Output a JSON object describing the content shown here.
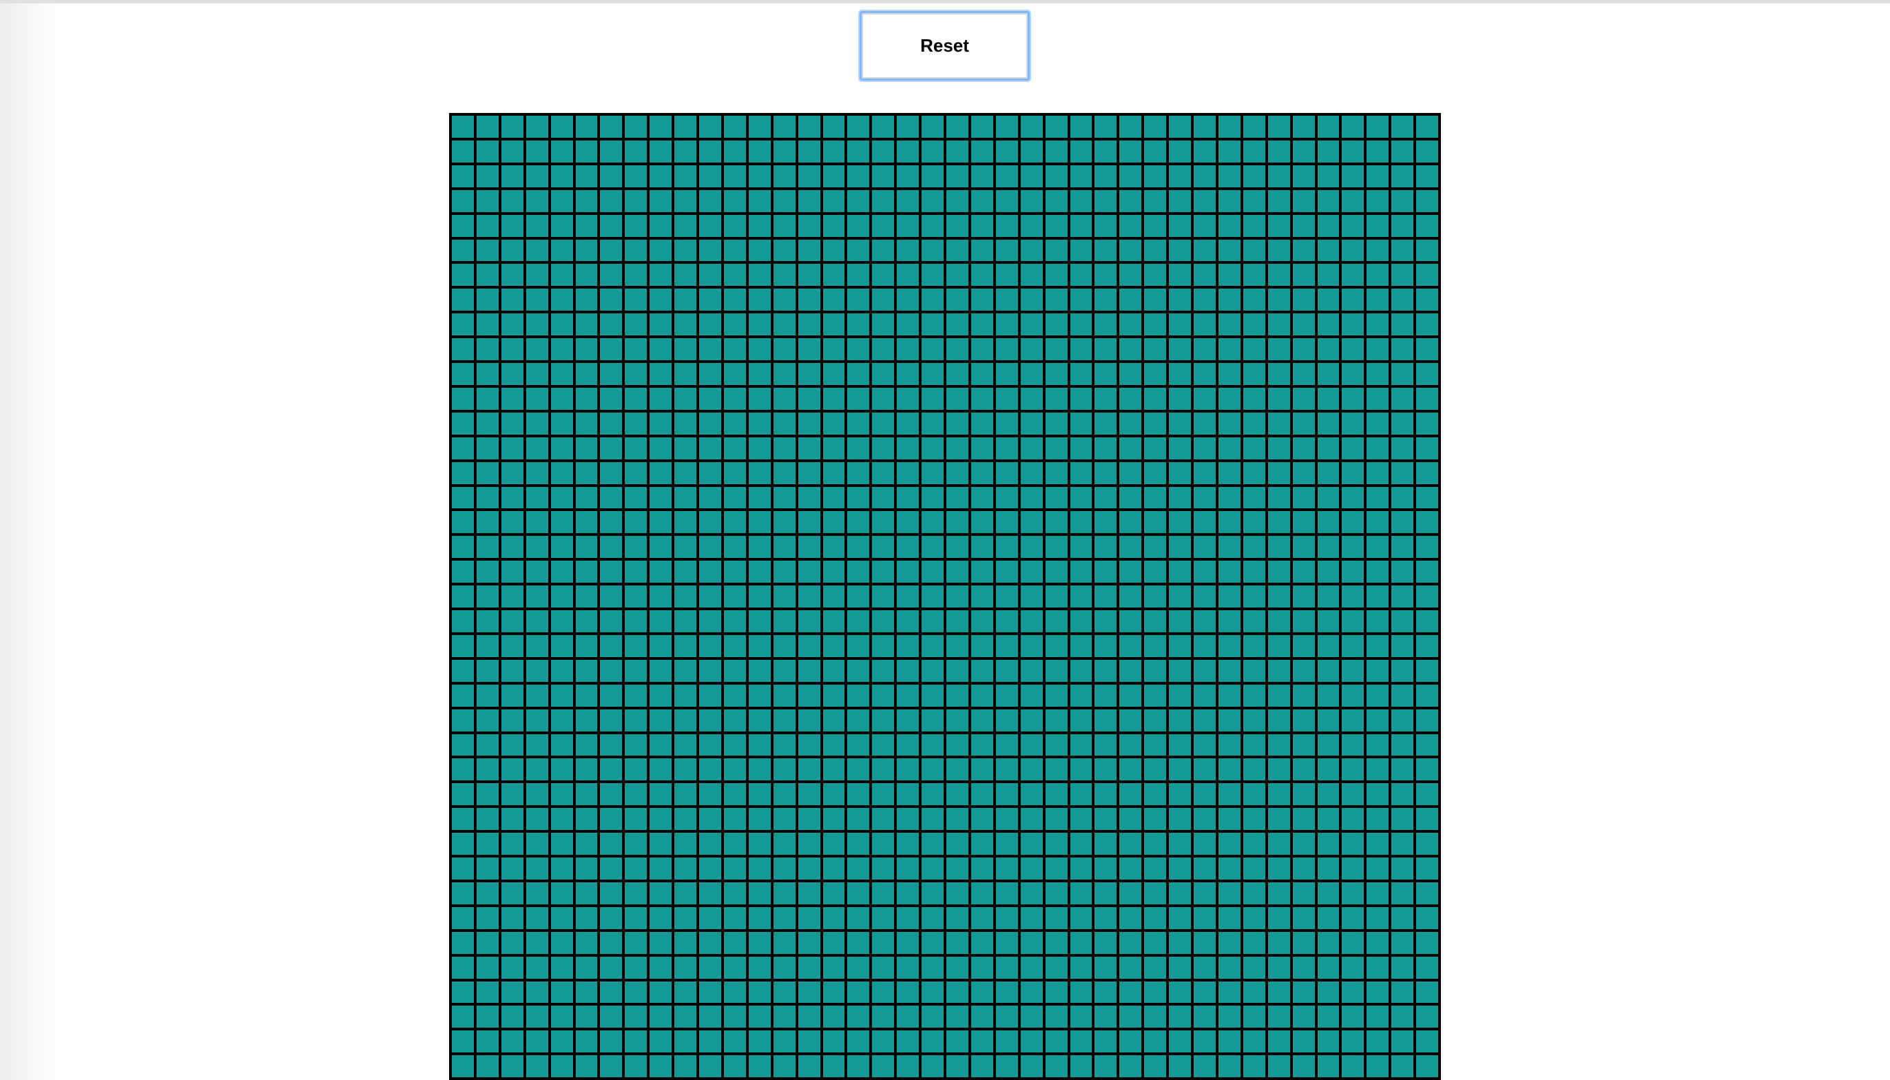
{
  "toolbar": {
    "reset_label": "Reset"
  },
  "grid": {
    "columns": 40,
    "rows": 40,
    "cell_color": "#139996",
    "line_color": "#000000"
  },
  "colors": {
    "background": "#ffffff",
    "button_focus_ring": "#82b7f5"
  }
}
